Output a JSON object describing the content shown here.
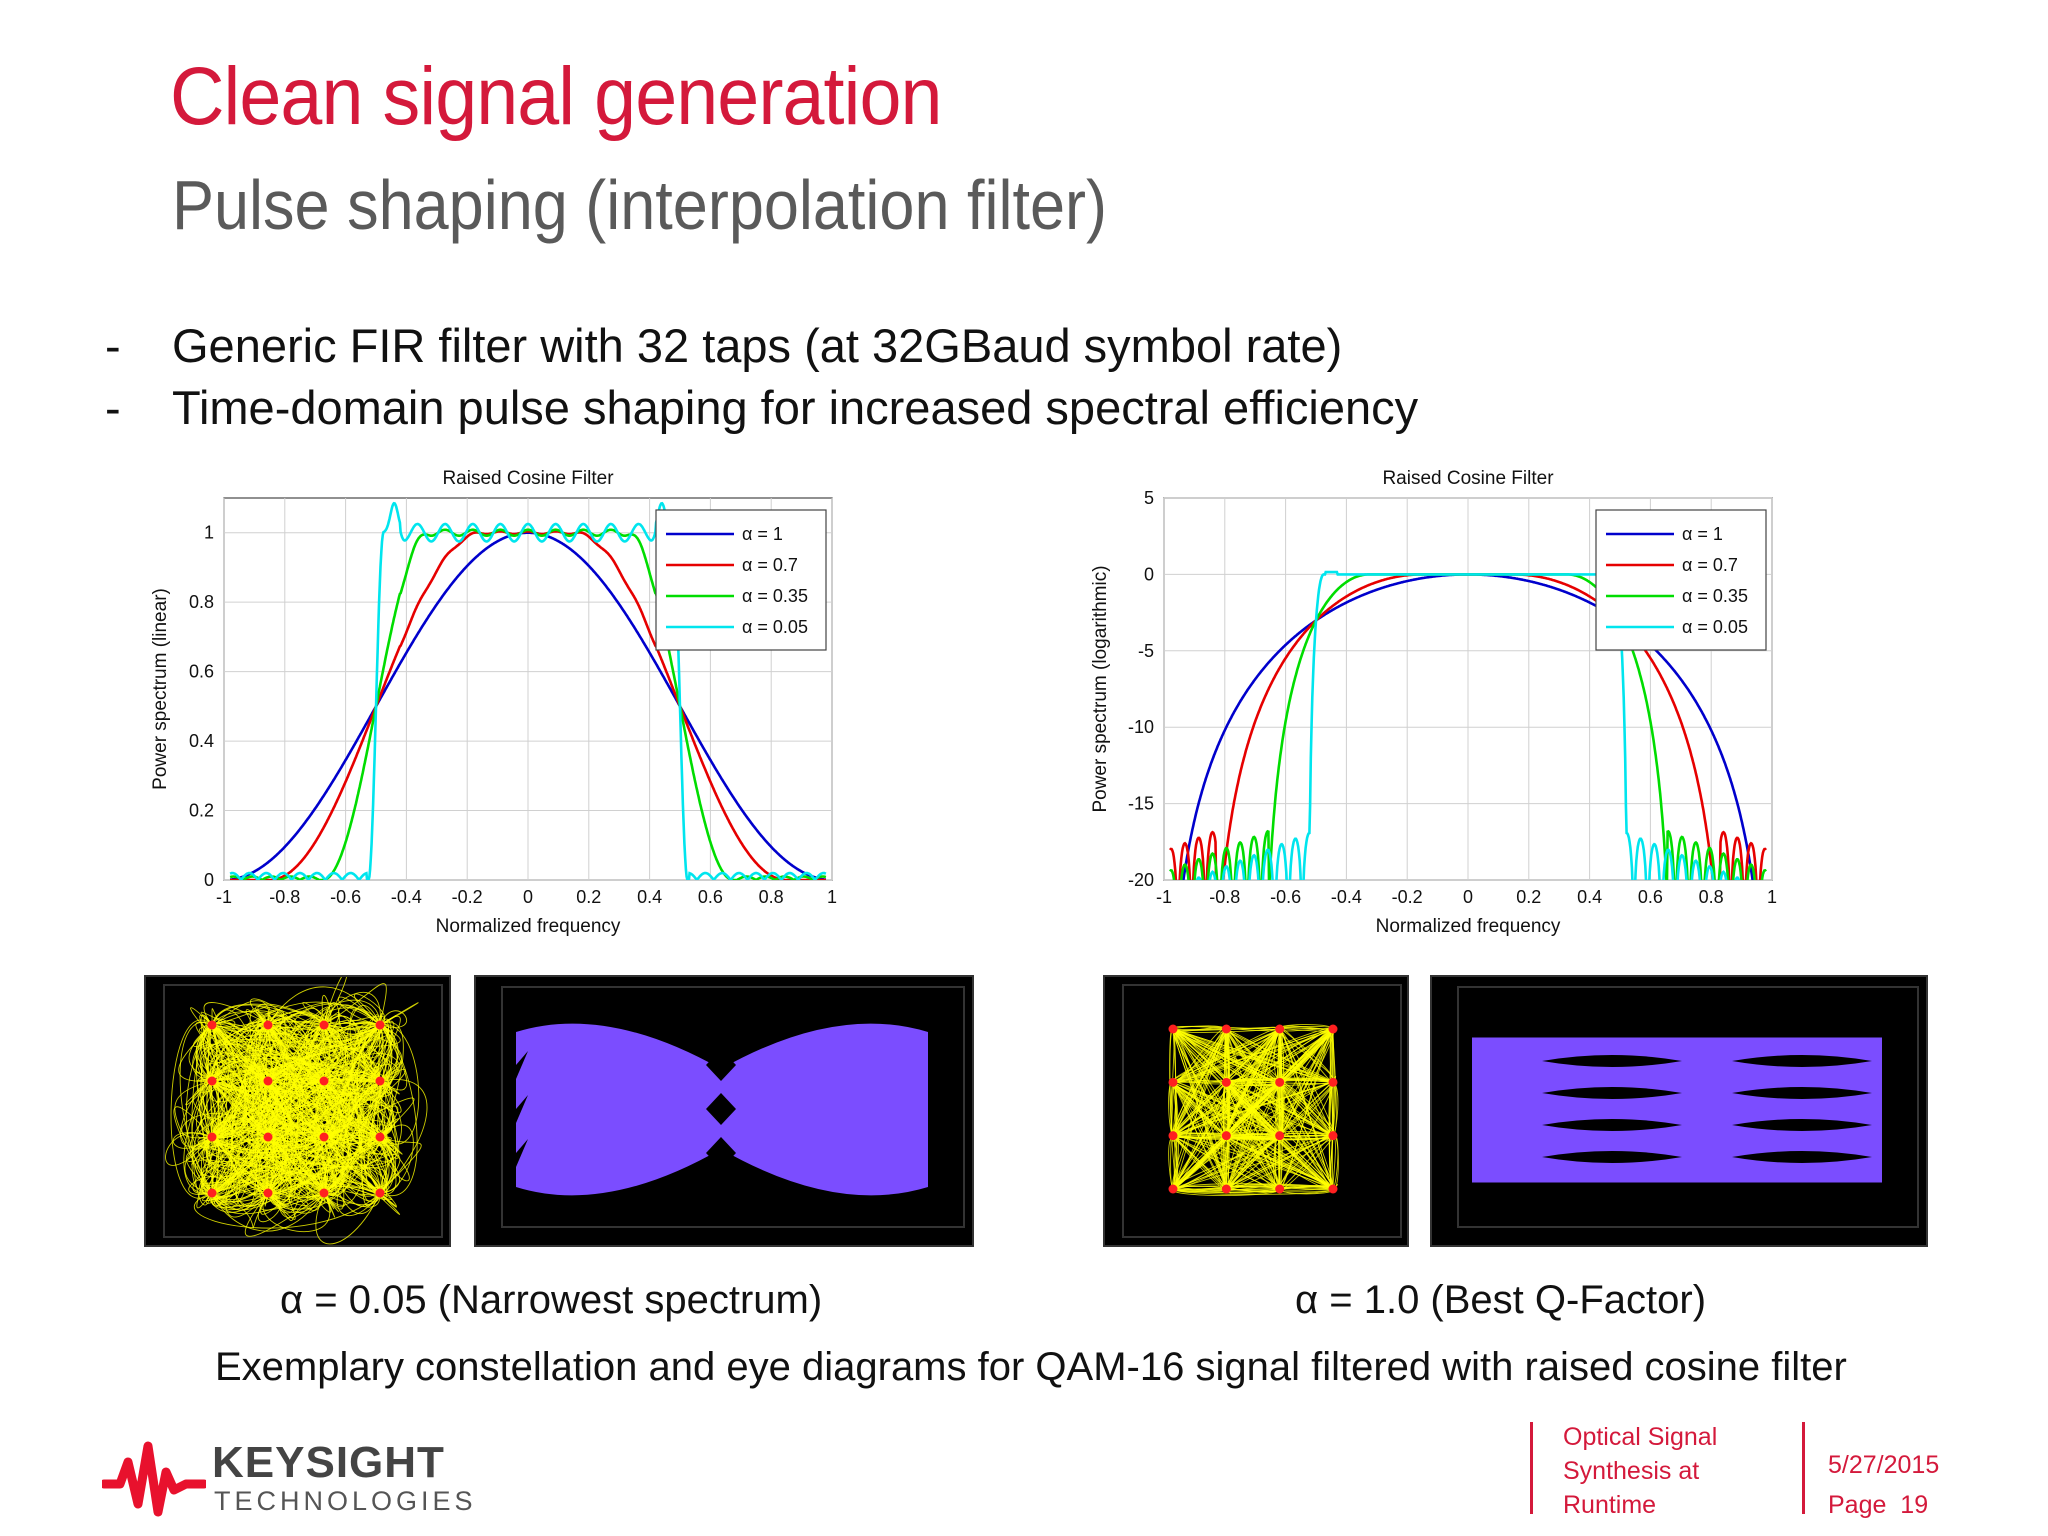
{
  "slide": {
    "title": "Clean signal generation",
    "subtitle": "Pulse shaping (interpolation filter)",
    "bullets": [
      {
        "dash": "-",
        "text": "Generic FIR filter with 32 taps (at 32GBaud symbol rate)"
      },
      {
        "dash": "-",
        "text": "Time-domain pulse shaping for increased spectral efficiency"
      }
    ],
    "caption_left": "α = 0.05 (Narrowest spectrum)",
    "caption_right": "α = 1.0 (Best Q-Factor)",
    "caption_main": "Exemplary constellation and eye diagrams for QAM-16 signal filtered with raised cosine filter"
  },
  "footer": {
    "logo_name": "KEYSIGHT",
    "logo_sub": "TECHNOLOGIES",
    "doc_title_lines": [
      "Optical Signal",
      "Synthesis at",
      "Runtime"
    ],
    "date": "5/27/2015",
    "page_label": "Page",
    "page_number": "19"
  },
  "colors": {
    "accent": "#d4193b",
    "series": [
      "#0000cc",
      "#e60000",
      "#00dd00",
      "#00e5ee"
    ],
    "eye": "#7b4dff",
    "constellation": "#ffff00"
  },
  "chart_data": [
    {
      "type": "line",
      "title": "Raised Cosine Filter",
      "xlabel": "Normalized frequency",
      "ylabel": "Power spectrum (linear)",
      "xlim": [
        -1,
        1
      ],
      "ylim": [
        0,
        1.1
      ],
      "xticks": [
        "-1",
        "-0.8",
        "-0.6",
        "-0.4",
        "-0.2",
        "0",
        "0.2",
        "0.4",
        "0.6",
        "0.8",
        "1"
      ],
      "yticks": [
        "0",
        "0.2",
        "0.4",
        "0.6",
        "0.8",
        "1"
      ],
      "grid": true,
      "legend": "top-right",
      "series": [
        {
          "name": "α = 1",
          "alpha": 1
        },
        {
          "name": "α = 0.7",
          "alpha": 0.7
        },
        {
          "name": "α = 0.35",
          "alpha": 0.35
        },
        {
          "name": "α = 0.05",
          "alpha": 0.05
        }
      ]
    },
    {
      "type": "line",
      "title": "Raised Cosine Filter",
      "xlabel": "Normalized frequency",
      "ylabel": "Power spectrum (logarithmic)",
      "xlim": [
        -1,
        1
      ],
      "ylim": [
        -20,
        5
      ],
      "xticks": [
        "-1",
        "-0.8",
        "-0.6",
        "-0.4",
        "-0.2",
        "0",
        "0.2",
        "0.4",
        "0.6",
        "0.8",
        "1"
      ],
      "yticks": [
        "-20",
        "-15",
        "-10",
        "-5",
        "0",
        "5"
      ],
      "grid": true,
      "legend": "top-right",
      "series": [
        {
          "name": "α = 1",
          "alpha": 1
        },
        {
          "name": "α = 0.7",
          "alpha": 0.7
        },
        {
          "name": "α = 0.35",
          "alpha": 0.35
        },
        {
          "name": "α = 0.05",
          "alpha": 0.05
        }
      ]
    }
  ]
}
